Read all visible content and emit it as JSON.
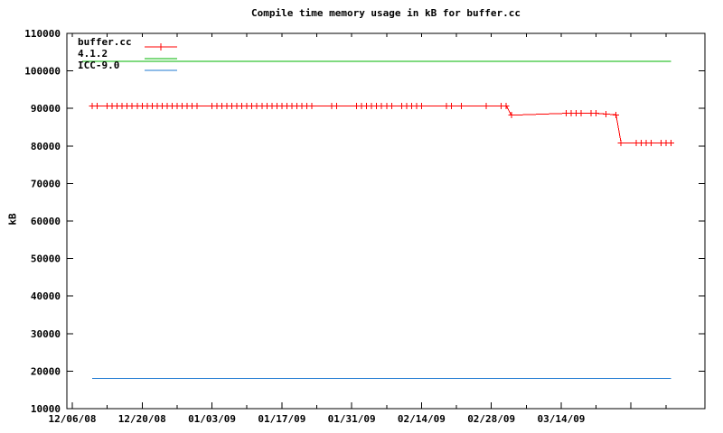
{
  "window": {
    "background": "#ffffff"
  },
  "chart_data": {
    "type": "line",
    "title": "Compile time memory usage in kB for buffer.cc",
    "xlabel": "",
    "ylabel": "kB",
    "grid": false,
    "legend": {
      "position": "top-left",
      "entries": [
        "buffer.cc",
        "4.1.2",
        "ICC-9.0"
      ]
    },
    "y_axis": {
      "min": 10000,
      "max": 110000,
      "tick_step": 10000,
      "tick_labels": [
        "10000",
        "20000",
        "30000",
        "40000",
        "50000",
        "60000",
        "70000",
        "80000",
        "90000",
        "100000",
        "110000"
      ]
    },
    "x_axis": {
      "unit": "days since 12/06/08",
      "day0_date": "12/06/08",
      "minor_tick_interval_days": 7,
      "major_tick_interval_days": 14,
      "last_tick_day": 119,
      "tick_label_days": [
        0,
        14,
        28,
        42,
        56,
        70,
        84,
        98
      ],
      "tick_labels": [
        "12/06/08",
        "12/20/08",
        "01/03/09",
        "01/17/09",
        "01/31/09",
        "02/14/09",
        "02/28/09",
        "03/14/09"
      ]
    },
    "series": [
      {
        "name": "buffer.cc",
        "color": "#ff0000",
        "style": "linespoints",
        "marker": "plus",
        "points_day_kb": [
          [
            4,
            90700
          ],
          [
            5,
            90700
          ],
          [
            7,
            90700
          ],
          [
            8,
            90700
          ],
          [
            9,
            90700
          ],
          [
            10,
            90700
          ],
          [
            11,
            90700
          ],
          [
            12,
            90700
          ],
          [
            13,
            90700
          ],
          [
            14,
            90700
          ],
          [
            15,
            90700
          ],
          [
            16,
            90700
          ],
          [
            17,
            90700
          ],
          [
            18,
            90700
          ],
          [
            19,
            90700
          ],
          [
            20,
            90700
          ],
          [
            21,
            90700
          ],
          [
            22,
            90700
          ],
          [
            23,
            90700
          ],
          [
            24,
            90700
          ],
          [
            25,
            90700
          ],
          [
            28,
            90700
          ],
          [
            29,
            90700
          ],
          [
            30,
            90700
          ],
          [
            31,
            90700
          ],
          [
            32,
            90700
          ],
          [
            33,
            90700
          ],
          [
            34,
            90700
          ],
          [
            35,
            90700
          ],
          [
            36,
            90700
          ],
          [
            37,
            90700
          ],
          [
            38,
            90700
          ],
          [
            39,
            90700
          ],
          [
            40,
            90700
          ],
          [
            41,
            90700
          ],
          [
            42,
            90700
          ],
          [
            43,
            90700
          ],
          [
            44,
            90700
          ],
          [
            45,
            90700
          ],
          [
            46,
            90700
          ],
          [
            47,
            90700
          ],
          [
            48,
            90700
          ],
          [
            52,
            90700
          ],
          [
            53,
            90700
          ],
          [
            57,
            90700
          ],
          [
            58,
            90700
          ],
          [
            59,
            90700
          ],
          [
            60,
            90700
          ],
          [
            61,
            90700
          ],
          [
            62,
            90700
          ],
          [
            63,
            90700
          ],
          [
            64,
            90700
          ],
          [
            66,
            90700
          ],
          [
            67,
            90700
          ],
          [
            68,
            90700
          ],
          [
            69,
            90700
          ],
          [
            70,
            90700
          ],
          [
            75,
            90700
          ],
          [
            76,
            90700
          ],
          [
            78,
            90700
          ],
          [
            83,
            90700
          ],
          [
            86,
            90700
          ],
          [
            87,
            90700
          ],
          [
            88,
            88200
          ],
          [
            99,
            88700
          ],
          [
            100,
            88700
          ],
          [
            101,
            88700
          ],
          [
            102,
            88700
          ],
          [
            104,
            88700
          ],
          [
            105,
            88700
          ],
          [
            107,
            88500
          ],
          [
            109,
            88300
          ],
          [
            110,
            80800
          ],
          [
            113,
            80800
          ],
          [
            114,
            80800
          ],
          [
            115,
            80800
          ],
          [
            116,
            80800
          ],
          [
            118,
            80800
          ],
          [
            119,
            80800
          ],
          [
            120,
            80800
          ]
        ]
      },
      {
        "name": "4.1.2",
        "color": "#00b400",
        "style": "line",
        "marker": "none",
        "points_day_kb": [
          [
            2,
            102500
          ],
          [
            120,
            102500
          ]
        ]
      },
      {
        "name": "ICC-9.0",
        "color": "#1f7ad2",
        "style": "line",
        "marker": "none",
        "points_day_kb": [
          [
            4,
            18100
          ],
          [
            120,
            18100
          ]
        ]
      }
    ]
  }
}
